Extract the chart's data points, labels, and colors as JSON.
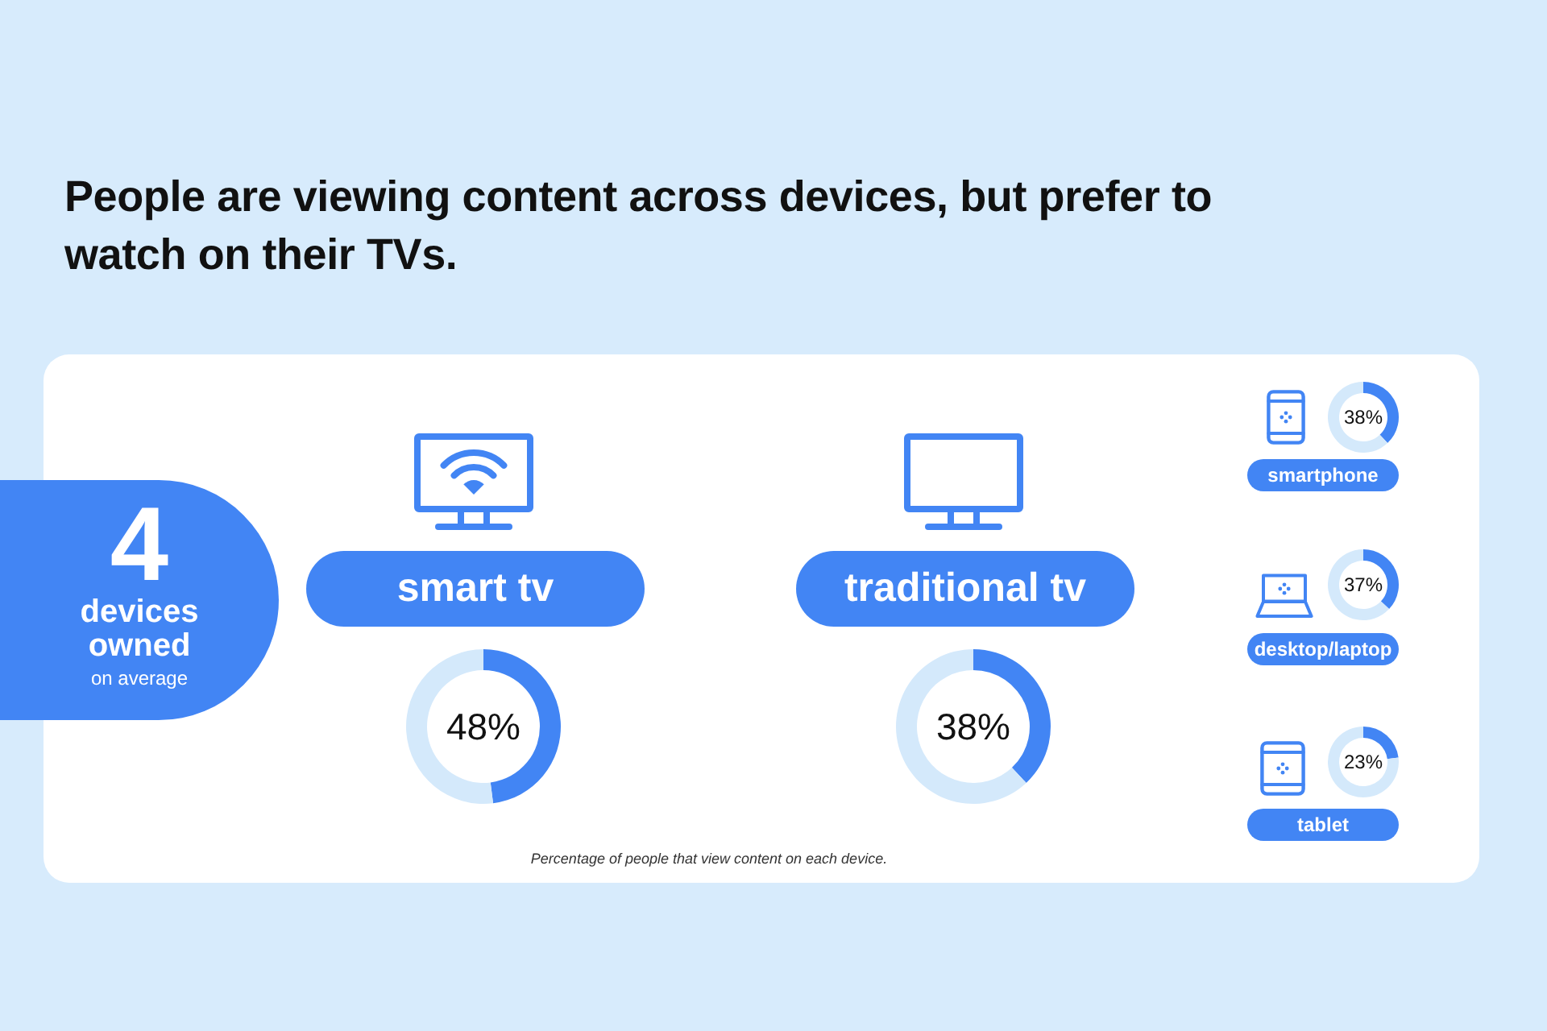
{
  "chart_data": [
    {
      "type": "other",
      "title": "People are viewing content across devices, but prefer to watch on their TVs.",
      "annotations": [
        "Percentage of people that view content on each device."
      ]
    },
    {
      "type": "other",
      "title": "4",
      "subtitle": "devices owned",
      "annotations": [
        "on average"
      ]
    },
    {
      "type": "donut",
      "title": "smart tv",
      "categories": [
        null,
        null
      ],
      "values": [
        48,
        52
      ],
      "colors": [
        "#4285f4",
        "#d4e9fb"
      ],
      "annotations": [
        "48%"
      ]
    },
    {
      "type": "donut",
      "title": "traditional tv",
      "categories": [
        null,
        null
      ],
      "values": [
        38,
        62
      ],
      "colors": [
        "#4285f4",
        "#d4e9fb"
      ],
      "annotations": [
        "38%"
      ]
    },
    {
      "type": "donut",
      "title": "smartphone",
      "categories": [
        null,
        null
      ],
      "values": [
        38,
        62
      ],
      "colors": [
        "#4285f4",
        "#d4e9fb"
      ],
      "annotations": [
        "38%"
      ]
    },
    {
      "type": "donut",
      "title": "desktop/laptop",
      "categories": [
        null,
        null
      ],
      "values": [
        37,
        63
      ],
      "colors": [
        "#4285f4",
        "#d4e9fb"
      ],
      "annotations": [
        "37%"
      ]
    },
    {
      "type": "donut",
      "title": "tablet",
      "categories": [
        null,
        null
      ],
      "values": [
        23,
        77
      ],
      "colors": [
        "#4285f4",
        "#d4e9fb"
      ],
      "annotations": [
        "23%"
      ]
    }
  ]
}
